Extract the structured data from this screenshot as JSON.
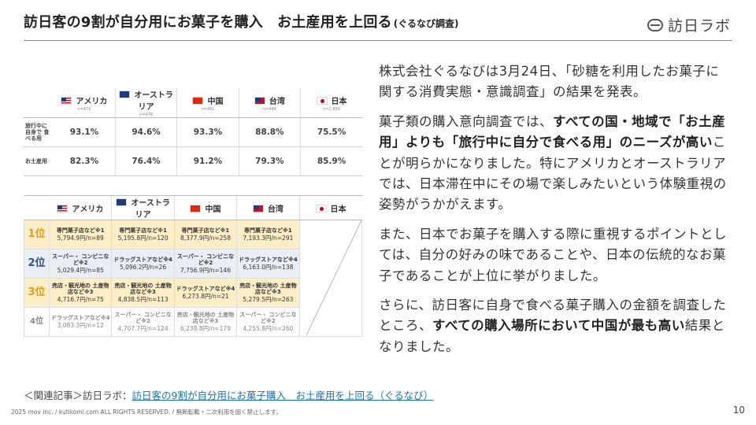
{
  "header": {
    "title": "訪日客の9割が自分用にお菓子を購入　お土産用を上回る",
    "title_suffix": "(ぐるなび調査)",
    "logo_text": "訪日ラボ"
  },
  "table1": {
    "countries": [
      {
        "name": "アメリカ",
        "n": "n=475",
        "flag": "us-flag-icon"
      },
      {
        "name": "オーストラリア",
        "n": "n=478",
        "flag": "au-flag-icon"
      },
      {
        "name": "中国",
        "n": "n=491",
        "flag": "cn-flag-icon"
      },
      {
        "name": "台湾",
        "n": "n=484",
        "flag": "tw-flag-icon"
      },
      {
        "name": "日本",
        "n": "n=2,859",
        "flag": "jp-flag-icon"
      }
    ],
    "rows": [
      {
        "label": "旅行中に 自身で 食べる用",
        "values": [
          "93.1%",
          "94.6%",
          "93.3%",
          "88.8%",
          "75.5%"
        ]
      },
      {
        "label": "お土産用",
        "values": [
          "82.3%",
          "76.4%",
          "91.2%",
          "79.3%",
          "85.9%"
        ]
      }
    ]
  },
  "table2": {
    "countries": [
      "アメリカ",
      "オーストラリア",
      "中国",
      "台湾",
      "日本"
    ],
    "ranks": [
      {
        "label": "1位",
        "cells": [
          {
            "place": "専門菓子店など※1",
            "amount": "5,794.9円/",
            "n": "n=89"
          },
          {
            "place": "専門菓子店など※1",
            "amount": "5,195.8円/",
            "n": "n=120"
          },
          {
            "place": "専門菓子店など※1",
            "amount": "8,377.9円/",
            "n": "n=258"
          },
          {
            "place": "専門菓子店など※1",
            "amount": "7,193.3円/",
            "n": "n=291"
          }
        ]
      },
      {
        "label": "2位",
        "cells": [
          {
            "place": "スーパー・ コンビニなど※2",
            "amount": "5,029.4円/",
            "n": "n=85"
          },
          {
            "place": "ドラッグストアなど※4",
            "amount": "5,096.2円/",
            "n": "n=26"
          },
          {
            "place": "スーパー・ コンビニなど※2",
            "amount": "7,756.9円/",
            "n": "n=146"
          },
          {
            "place": "ドラッグストアなど※4",
            "amount": "6,163.0円/",
            "n": "n=138"
          }
        ]
      },
      {
        "label": "3位",
        "cells": [
          {
            "place": "売店・観光地の 土産物店など※3",
            "amount": "4,716.7円/",
            "n": "n=75"
          },
          {
            "place": "売店・観光地の 土産物店など※3",
            "amount": "4,838.5円/",
            "n": "n=113"
          },
          {
            "place": "ドラッグストアなど※4",
            "amount": "6,273.8円/",
            "n": "n=21"
          },
          {
            "place": "売店・観光地の 土産物店など※3",
            "amount": "5,279.5円/",
            "n": "n=263"
          }
        ]
      },
      {
        "label": "4位",
        "cells": [
          {
            "place": "ドラッグストアなど※4",
            "amount": "3,083.3円/",
            "n": "n=12"
          },
          {
            "place": "スーパー・ コンビニなど※2",
            "amount": "4,707.7円/",
            "n": "n=124"
          },
          {
            "place": "売店・観光地の 土産物店など※3",
            "amount": "6,238.8円/",
            "n": "n=179"
          },
          {
            "place": "スーパー・ コンビニなど※2",
            "amount": "4,255.8円/",
            "n": "n=260"
          }
        ]
      }
    ]
  },
  "body": {
    "p1": "株式会社ぐるなびは3月24日、「砂糖を利用したお菓子に関する消費実態・意識調査」の結果を発表。",
    "p2_a": "菓子類の購入意向調査では、",
    "p2_b": "すべての国・地域で「お土産用」よりも「旅行中に自分で食べる用」のニーズが高い",
    "p2_c": "ことが明らかになりました。特にアメリカとオーストラリアでは、日本滞在中にその場で楽しみたいという体験重視の姿勢がうかがえます。",
    "p3": "また、日本でお菓子を購入する際に重視するポイントとしては、自分の好みの味であることや、日本の伝統的なお菓子であることが上位に挙がりました。",
    "p4_a": "さらに、訪日客に自身で食べる菓子購入の金額を調査したところ、",
    "p4_b": "すべての購入場所において中国が最も高い",
    "p4_c": "結果となりました。"
  },
  "footer": {
    "related_prefix": "＜関連記事＞訪日ラボ：",
    "related_link": "訪日客の9割が自分用にお菓子購入　お土産用を上回る（ぐるなび）",
    "copyright": "2025 mov inc. / kutikomi.com ALL RIGHTS RESERVED. / 無断転載・二次利用を固く禁止します。",
    "page_number": "10"
  }
}
